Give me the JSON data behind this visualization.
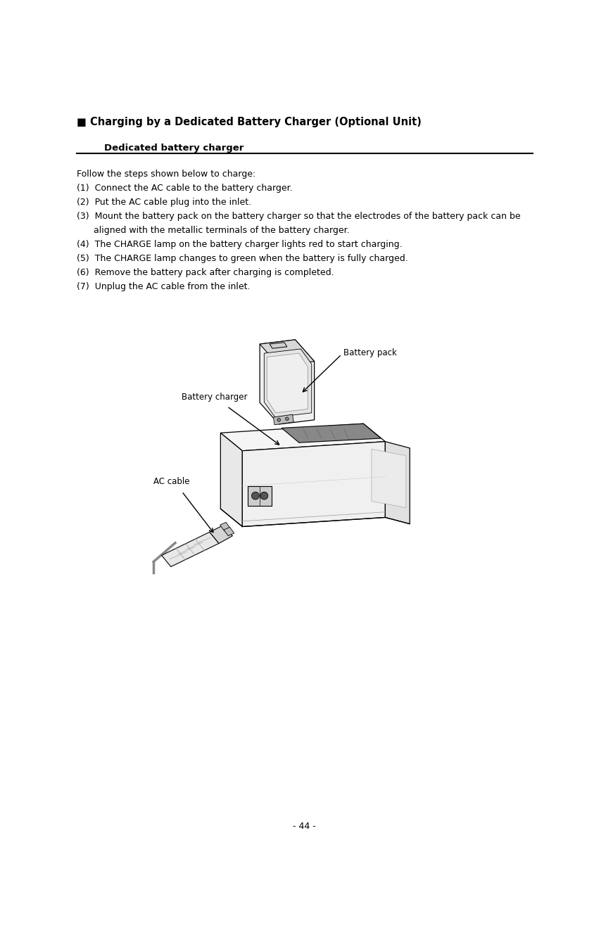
{
  "title": "■ Charging by a Dedicated Battery Charger (Optional Unit)",
  "subtitle": "Dedicated battery charger",
  "bg_color": "#ffffff",
  "text_color": "#000000",
  "title_fontsize": 10.5,
  "subtitle_fontsize": 9.5,
  "body_fontsize": 9.0,
  "label_fontsize": 8.5,
  "page_number": "- 44 -",
  "body_lines": [
    [
      "Follow the steps shown below to charge:",
      5
    ],
    [
      "(1)  Connect the AC cable to the battery charger.",
      5
    ],
    [
      "(2)  Put the AC cable plug into the inlet.",
      5
    ],
    [
      "(3)  Mount the battery pack on the battery charger so that the electrodes of the battery pack can be",
      5
    ],
    [
      "      aligned with the metallic terminals of the battery charger.",
      5
    ],
    [
      "(4)  The CHARGE lamp on the battery charger lights red to start charging.",
      5
    ],
    [
      "(5)  The CHARGE lamp changes to green when the battery is fully charged.",
      5
    ],
    [
      "(6)  Remove the battery pack after charging is completed.",
      5
    ],
    [
      "(7)  Unplug the AC cable from the inlet.",
      5
    ]
  ],
  "label_battery_pack": "Battery pack",
  "label_battery_charger": "Battery charger",
  "label_ac_cable": "AC cable"
}
